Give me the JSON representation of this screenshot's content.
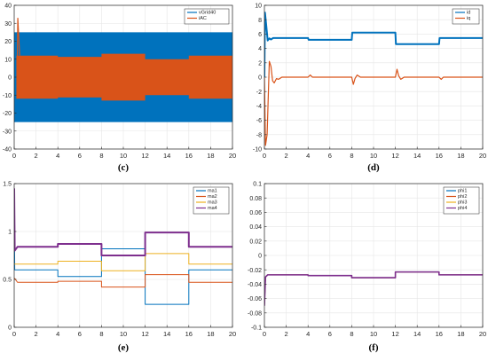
{
  "colors": {
    "blue": "#0072BD",
    "orange": "#D95319",
    "yellow": "#EDB120",
    "purple": "#7E2F8E",
    "grid": "#e6e6e6",
    "axis": "#262626"
  },
  "chart_data": [
    {
      "id": "c",
      "caption": "(c)",
      "type": "area",
      "xlim": [
        0,
        20
      ],
      "ylim": [
        -40,
        40
      ],
      "xticks": [
        0,
        2,
        4,
        6,
        8,
        10,
        12,
        14,
        16,
        18,
        20
      ],
      "yticks": [
        -40,
        -30,
        -20,
        -10,
        0,
        10,
        20,
        30,
        40
      ],
      "grid": true,
      "legend_position": "top-right",
      "legend": [
        "vGrid40",
        "iAC"
      ],
      "series": [
        {
          "name": "vGrid40",
          "kind": "band",
          "x": [
            0,
            20
          ],
          "upper": [
            25,
            25
          ],
          "lower": [
            -25,
            -25
          ],
          "transient_peak": 22
        },
        {
          "name": "iAC",
          "kind": "band",
          "x": [
            0.2,
            4,
            4,
            8,
            8,
            12,
            12,
            16,
            16,
            20
          ],
          "upper": [
            12,
            12,
            11.3,
            11.3,
            13,
            13,
            10,
            10,
            12,
            12
          ],
          "lower": [
            -12,
            -12,
            -11.3,
            -11.3,
            -13,
            -13,
            -10,
            -10,
            -12,
            -12
          ],
          "transient_peak": 33
        }
      ]
    },
    {
      "id": "d",
      "caption": "(d)",
      "type": "line",
      "xlim": [
        0,
        20
      ],
      "ylim": [
        -10,
        10
      ],
      "xticks": [
        0,
        2,
        4,
        6,
        8,
        10,
        12,
        14,
        16,
        18,
        20
      ],
      "yticks": [
        -10,
        -8,
        -6,
        -4,
        -2,
        0,
        2,
        4,
        6,
        8,
        10
      ],
      "grid": true,
      "legend_position": "top-right",
      "legend": [
        "id",
        "iq"
      ],
      "series": [
        {
          "name": "id",
          "width": 2,
          "x": [
            0,
            0.05,
            0.15,
            0.3,
            0.45,
            0.6,
            0.8,
            1.2,
            4,
            4.05,
            8,
            8.05,
            12,
            12.05,
            16,
            16.05,
            20
          ],
          "y": [
            0,
            9,
            7.5,
            5.1,
            5.4,
            5.25,
            5.45,
            5.45,
            5.45,
            5.2,
            5.2,
            6.2,
            6.2,
            4.6,
            4.6,
            5.45,
            5.45
          ]
        },
        {
          "name": "iq",
          "width": 1.2,
          "x": [
            0,
            0.1,
            0.25,
            0.45,
            0.6,
            0.75,
            0.9,
            1.1,
            1.3,
            1.6,
            4,
            4.2,
            4.4,
            8,
            8.15,
            8.3,
            8.5,
            8.8,
            12,
            12.15,
            12.3,
            12.5,
            12.8,
            16,
            16.2,
            16.4,
            20
          ],
          "y": [
            0,
            -9.5,
            -8,
            2.2,
            1.5,
            -0.5,
            -0.8,
            -0.2,
            -0.3,
            0,
            0,
            0.3,
            0,
            0,
            -1,
            -0.2,
            0.3,
            0,
            0,
            1.1,
            0.2,
            -0.3,
            0,
            0,
            -0.3,
            0,
            0
          ]
        }
      ]
    },
    {
      "id": "e",
      "caption": "(e)",
      "type": "line",
      "xlim": [
        0,
        20
      ],
      "ylim": [
        0,
        1.5
      ],
      "xticks": [
        0,
        2,
        4,
        6,
        8,
        10,
        12,
        14,
        16,
        18,
        20
      ],
      "yticks": [
        0,
        0.5,
        1,
        1.5
      ],
      "grid": true,
      "legend_position": "top-right",
      "legend": [
        "ma1",
        "ma2",
        "ma3",
        "ma4"
      ],
      "series": [
        {
          "name": "ma1",
          "width": 1,
          "x": [
            0,
            0.05,
            0.3,
            4,
            4,
            8,
            8,
            12,
            12,
            16,
            16,
            20
          ],
          "y": [
            1.4,
            0.6,
            0.6,
            0.6,
            0.53,
            0.53,
            0.82,
            0.82,
            0.24,
            0.24,
            0.6,
            0.6
          ]
        },
        {
          "name": "ma2",
          "width": 1,
          "x": [
            0,
            0.05,
            0.3,
            4,
            4,
            8,
            8,
            12,
            12,
            16,
            16,
            20
          ],
          "y": [
            0.5,
            0.51,
            0.47,
            0.47,
            0.48,
            0.48,
            0.42,
            0.42,
            0.55,
            0.55,
            0.47,
            0.47
          ]
        },
        {
          "name": "ma3",
          "width": 1,
          "x": [
            0,
            0.3,
            4,
            4,
            8,
            8,
            12,
            12,
            16,
            16,
            20
          ],
          "y": [
            0.66,
            0.66,
            0.66,
            0.69,
            0.69,
            0.59,
            0.59,
            0.77,
            0.77,
            0.66,
            0.66
          ]
        },
        {
          "name": "ma4",
          "width": 2,
          "x": [
            0,
            0.05,
            0.3,
            4,
            4,
            8,
            8,
            12,
            12,
            16,
            16,
            20
          ],
          "y": [
            1.45,
            0.8,
            0.84,
            0.84,
            0.87,
            0.87,
            0.75,
            0.75,
            0.99,
            0.99,
            0.84,
            0.84
          ]
        }
      ]
    },
    {
      "id": "f",
      "caption": "(f)",
      "type": "line",
      "xlim": [
        0,
        20
      ],
      "ylim": [
        -0.1,
        0.1
      ],
      "xticks": [
        0,
        2,
        4,
        6,
        8,
        10,
        12,
        14,
        16,
        18,
        20
      ],
      "yticks": [
        -0.1,
        -0.08,
        -0.06,
        -0.04,
        -0.02,
        0,
        0.02,
        0.04,
        0.06,
        0.08,
        0.1
      ],
      "grid": true,
      "legend_position": "top-right",
      "legend": [
        "phi1",
        "phi2",
        "phi3",
        "phi4"
      ],
      "series": [
        {
          "name": "phi1",
          "width": 1,
          "x": [
            0,
            0.1,
            0.3,
            4,
            4,
            8,
            8,
            12,
            12,
            16,
            16,
            20
          ],
          "y": [
            -0.07,
            -0.03,
            -0.027,
            -0.027,
            -0.028,
            -0.028,
            -0.031,
            -0.031,
            -0.023,
            -0.023,
            -0.027,
            -0.027
          ]
        },
        {
          "name": "phi2",
          "width": 1,
          "x": [
            0,
            0.1,
            0.3,
            4,
            4,
            8,
            8,
            12,
            12,
            16,
            16,
            20
          ],
          "y": [
            -0.07,
            -0.03,
            -0.027,
            -0.027,
            -0.028,
            -0.028,
            -0.031,
            -0.031,
            -0.023,
            -0.023,
            -0.027,
            -0.027
          ]
        },
        {
          "name": "phi3",
          "width": 1,
          "x": [
            0,
            0.1,
            0.3,
            4,
            4,
            8,
            8,
            12,
            12,
            16,
            16,
            20
          ],
          "y": [
            -0.07,
            -0.03,
            -0.027,
            -0.027,
            -0.028,
            -0.028,
            -0.031,
            -0.031,
            -0.023,
            -0.023,
            -0.027,
            -0.027
          ]
        },
        {
          "name": "phi4",
          "width": 1.6,
          "x": [
            0,
            0.1,
            0.3,
            4,
            4,
            8,
            8,
            12,
            12,
            16,
            16,
            20
          ],
          "y": [
            -0.07,
            -0.03,
            -0.027,
            -0.027,
            -0.028,
            -0.028,
            -0.031,
            -0.031,
            -0.023,
            -0.023,
            -0.027,
            -0.027
          ]
        }
      ]
    }
  ]
}
